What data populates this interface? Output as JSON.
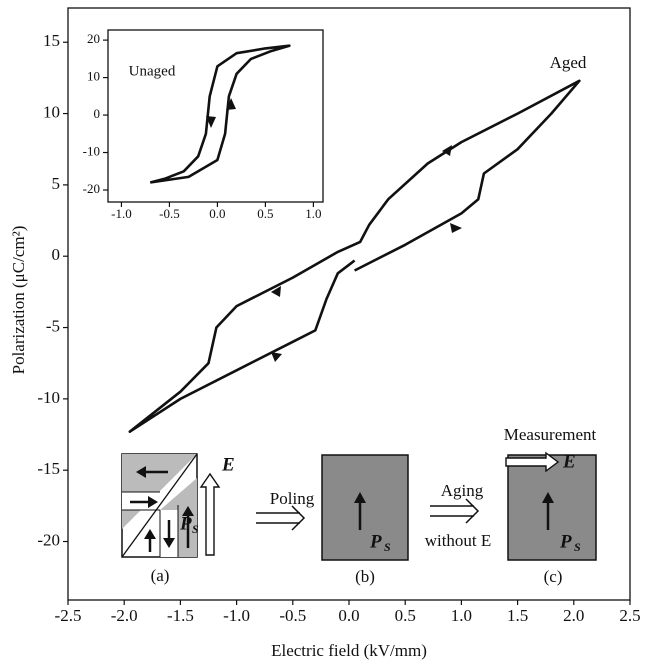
{
  "chart_data": {
    "type": "line",
    "xlabel": "Electric field (kV/mm)",
    "ylabel": "Polarization (μC/cm²)",
    "xlim": [
      -2.5,
      2.5
    ],
    "ylim": [
      -24.1,
      17.4
    ],
    "xticks": [
      {
        "value": -2.5,
        "label": "-2.5"
      },
      {
        "value": -2,
        "label": "-2.0"
      },
      -1.5,
      {
        "value": -1,
        "label": "-1.0"
      },
      -0.5,
      {
        "value": 0,
        "label": "0.0"
      },
      0.5,
      {
        "value": 1,
        "label": "1.0"
      },
      1.5,
      {
        "value": 2,
        "label": "2.0"
      },
      2.5
    ],
    "yticks": [
      15,
      10,
      5,
      0,
      -5,
      -10,
      -15,
      -20
    ],
    "annotations": [
      "Aged"
    ],
    "series": [
      {
        "color": "#111111",
        "x": [
          0.05,
          0.5,
          1.0,
          1.15,
          1.2,
          1.5,
          1.8,
          2.05,
          1.5,
          1.0,
          0.7,
          0.35,
          0.18,
          0.1,
          -0.1,
          -0.5,
          -1.0,
          -1.18,
          -1.25,
          -1.5,
          -1.95,
          -1.5,
          -1.0,
          -0.5,
          -0.3,
          -0.2,
          -0.1,
          0.0,
          0.05
        ],
        "values": [
          -1,
          0.8,
          3,
          4,
          5.8,
          7.5,
          10,
          12.3,
          10,
          8,
          6.5,
          4,
          2.2,
          1,
          0.3,
          -1.5,
          -3.5,
          -5,
          -7.5,
          -9.5,
          -12.3,
          -10,
          -8,
          -6,
          -5.2,
          -3,
          -1.2,
          -0.6,
          -0.3
        ]
      }
    ],
    "inset": {
      "type": "line",
      "xlim": [
        -1.14,
        1.1
      ],
      "ylim": [
        -23.2,
        22.7
      ],
      "xticks": [
        {
          "value": -1,
          "label": "-1.0"
        },
        -0.5,
        {
          "value": 0,
          "label": "0.0"
        },
        0.5,
        {
          "value": 1,
          "label": "1.0"
        }
      ],
      "yticks": [
        20,
        10,
        0,
        -10,
        -20
      ],
      "annotations": [
        "Unaged"
      ],
      "series": [
        {
          "color": "#111111",
          "x": [
            -0.7,
            -0.3,
            0.0,
            0.08,
            0.12,
            0.2,
            0.35,
            0.55,
            0.75,
            0.5,
            0.2,
            0.0,
            -0.08,
            -0.12,
            -0.2,
            -0.35,
            -0.55,
            -0.7
          ],
          "values": [
            -18,
            -16.5,
            -12,
            -5,
            5,
            11,
            15,
            17,
            18.5,
            17.8,
            16.5,
            13,
            5,
            -5,
            -11,
            -15,
            -17,
            -18
          ]
        }
      ]
    },
    "schematic": {
      "panel_labels": [
        "(a)",
        "(b)",
        "(c)"
      ],
      "steps": [
        "Poling",
        "Aging",
        "without E",
        "Measurement"
      ],
      "field": "E",
      "polarization": "P",
      "polarization_sub": "S"
    }
  }
}
